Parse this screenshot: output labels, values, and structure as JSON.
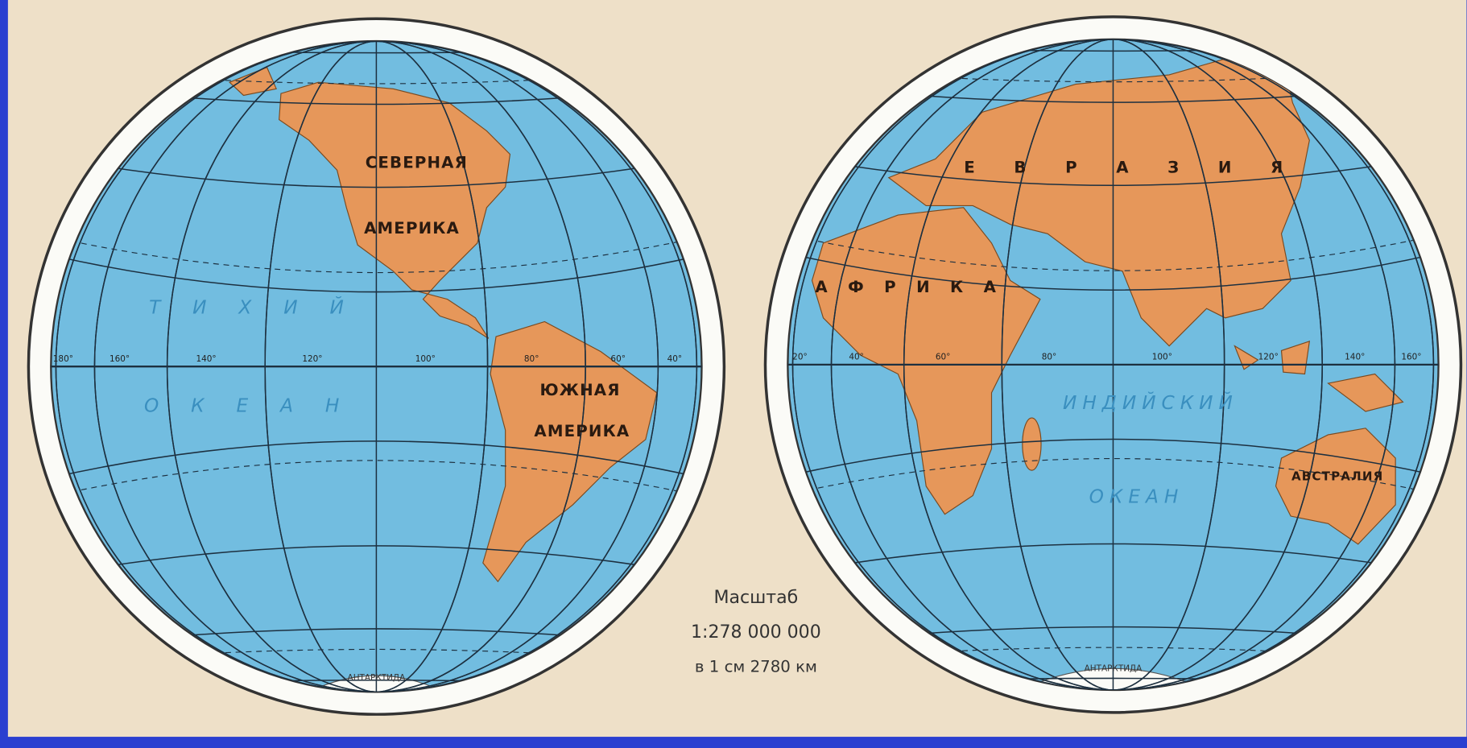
{
  "western_hemisphere": {
    "continents": [
      "СЕВЕРНАЯ",
      "АМЕРИКА",
      "ЮЖНАЯ",
      "АМЕРИКА"
    ],
    "oceans": [
      "Т И Х И Й",
      "О К Е А Н"
    ],
    "antarctica": "АНТАРКТИДА",
    "degrees": [
      "180°",
      "160°",
      "140°",
      "120°",
      "100°",
      "80°",
      "60°",
      "40°"
    ]
  },
  "eastern_hemisphere": {
    "continents": [
      "Е В Р А З И Я",
      "А Ф Р И К А",
      "АВСТРАЛИЯ"
    ],
    "oceans": [
      "ИНДИЙСКИЙ",
      "ОКЕАН"
    ],
    "antarctica": "АНТАРКТИДА",
    "degrees": [
      "20°",
      "40°",
      "60°",
      "80°",
      "100°",
      "120°",
      "140°",
      "160°"
    ]
  },
  "scale": {
    "title": "Масштаб",
    "ratio": "1:278 000 000",
    "note": "в 1 см 2780 км"
  }
}
